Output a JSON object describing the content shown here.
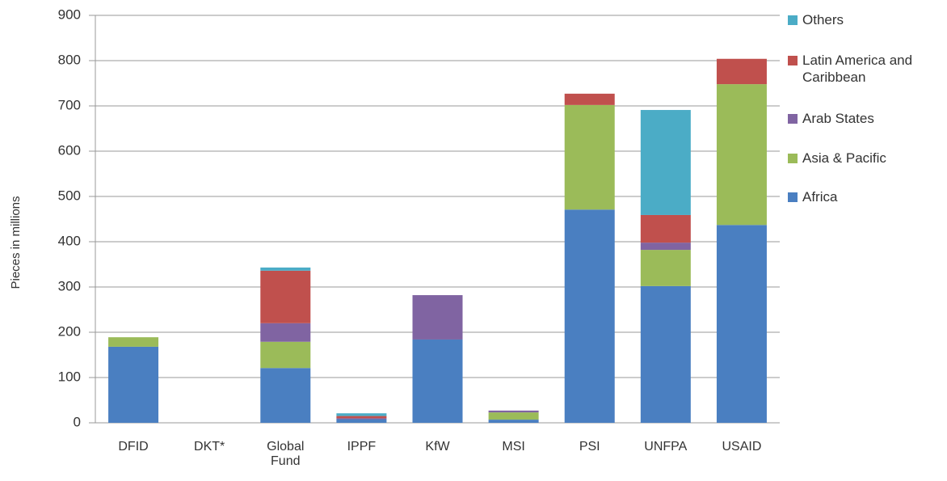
{
  "chart_data": {
    "type": "stacked_bar",
    "y_label": "Pieces in millions",
    "categories": [
      "DFID",
      "DKT*",
      "Global Fund",
      "IPPF",
      "KfW",
      "MSI",
      "PSI",
      "UNFPA",
      "USAID"
    ],
    "series": [
      {
        "name": "Africa",
        "color": "#4a7fc1",
        "values": [
          168,
          0,
          121,
          8,
          184,
          7,
          471,
          302,
          437
        ]
      },
      {
        "name": "Asia & Pacific",
        "color": "#9bbb59",
        "values": [
          21,
          0,
          58,
          0,
          0,
          16,
          231,
          80,
          311
        ]
      },
      {
        "name": "Arab States",
        "color": "#8064a2",
        "values": [
          0,
          0,
          41,
          2,
          98,
          4,
          0,
          16,
          0
        ]
      },
      {
        "name": "Latin America and Caribbean",
        "color": "#c0504d",
        "values": [
          0,
          0,
          116,
          5,
          0,
          0,
          25,
          61,
          56
        ]
      },
      {
        "name": "Others",
        "color": "#4bacc6",
        "values": [
          0,
          0,
          7,
          6,
          0,
          0,
          0,
          232,
          0
        ]
      }
    ],
    "ylim": [
      0,
      900
    ],
    "yticks": [
      0,
      100,
      200,
      300,
      400,
      500,
      600,
      700,
      800,
      900
    ],
    "grid": true,
    "legend": "right"
  }
}
